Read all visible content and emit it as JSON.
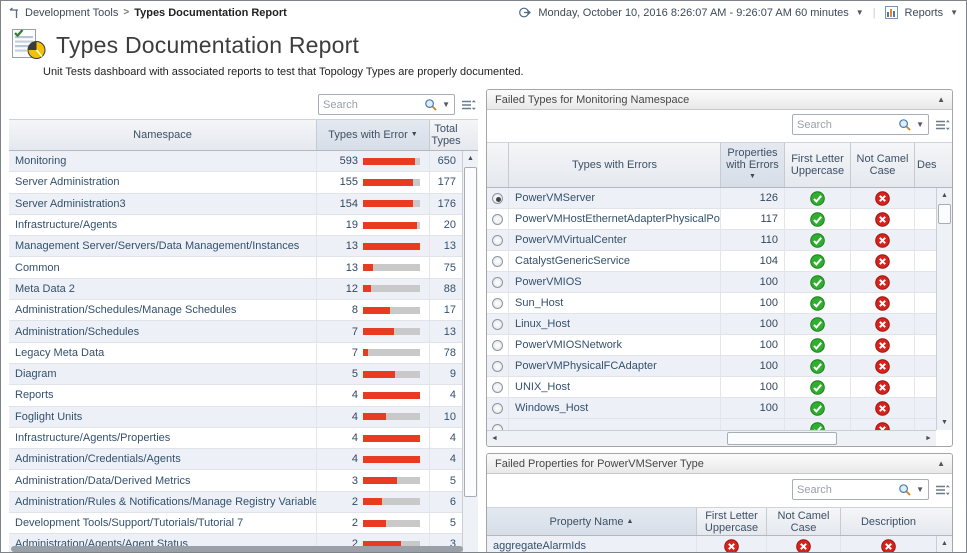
{
  "breadcrumb": {
    "section": "Development Tools",
    "separator": ">",
    "page": "Types Documentation Report"
  },
  "topbar": {
    "time_range": "Monday, October 10, 2016 8:26:07 AM - 9:26:07 AM 60 minutes",
    "reports_label": "Reports"
  },
  "header": {
    "title": "Types Documentation Report",
    "description": "Unit Tests dashboard with associated reports to test that Topology Types are properly documented."
  },
  "icons": {
    "breadcrumb": "bookmark-icon",
    "time": "time-range-icon",
    "reports": "report-chart-icon",
    "page_title": "report-document-pie-icon",
    "search": "magnifier-icon",
    "customizer": "table-customizer-icon",
    "pass": "green-check-circle",
    "fail": "red-x-circle"
  },
  "colors": {
    "error_bar": "#e83b20",
    "bar_track": "#c9c9c9",
    "pass_green": "#2fae2f",
    "fail_red": "#d7231d",
    "row_alt": "#edf1f7",
    "link_text": "#34506c"
  },
  "namespace_table": {
    "search_placeholder": "Search",
    "columns": [
      "Namespace",
      "Types with Error",
      "Total Types"
    ],
    "sort_column": "Types with Error",
    "sort_direction": "desc",
    "rows": [
      {
        "namespace": "Monitoring",
        "errors": 593,
        "total": 650
      },
      {
        "namespace": "Server Administration",
        "errors": 155,
        "total": 177
      },
      {
        "namespace": "Server Administration3",
        "errors": 154,
        "total": 176
      },
      {
        "namespace": "Infrastructure/Agents",
        "errors": 19,
        "total": 20
      },
      {
        "namespace": "Management Server/Servers/Data Management/Instances",
        "errors": 13,
        "total": 13
      },
      {
        "namespace": "Common",
        "errors": 13,
        "total": 75
      },
      {
        "namespace": "Meta Data 2",
        "errors": 12,
        "total": 88
      },
      {
        "namespace": "Administration/Schedules/Manage Schedules",
        "errors": 8,
        "total": 17
      },
      {
        "namespace": "Administration/Schedules",
        "errors": 7,
        "total": 13
      },
      {
        "namespace": "Legacy Meta Data",
        "errors": 7,
        "total": 78
      },
      {
        "namespace": "Diagram",
        "errors": 5,
        "total": 9
      },
      {
        "namespace": "Reports",
        "errors": 4,
        "total": 4
      },
      {
        "namespace": "Foglight Units",
        "errors": 4,
        "total": 10
      },
      {
        "namespace": "Infrastructure/Agents/Properties",
        "errors": 4,
        "total": 4
      },
      {
        "namespace": "Administration/Credentials/Agents",
        "errors": 4,
        "total": 4
      },
      {
        "namespace": "Administration/Data/Derived Metrics",
        "errors": 3,
        "total": 5
      },
      {
        "namespace": "Administration/Rules & Notifications/Manage Registry Variables",
        "errors": 2,
        "total": 6
      },
      {
        "namespace": "Development Tools/Support/Tutorials/Tutorial 7",
        "errors": 2,
        "total": 5
      },
      {
        "namespace": "Administration/Agents/Agent Status",
        "errors": 2,
        "total": 3
      }
    ]
  },
  "failed_types_panel": {
    "title": "Failed Types for Monitoring Namespace",
    "search_placeholder": "Search",
    "columns": [
      "Types with Errors",
      "Properties with Errors",
      "First Letter Uppercase",
      "Not Camel Case",
      "Description"
    ],
    "sort_column": "Properties with Errors",
    "sort_direction": "desc",
    "rows": [
      {
        "selected": true,
        "type": "PowerVMServer",
        "properties_with_errors": 126,
        "first_letter_uppercase": "pass",
        "not_camel_case": "fail"
      },
      {
        "selected": false,
        "type": "PowerVMHostEthernetAdapterPhysicalPort",
        "properties_with_errors": 117,
        "first_letter_uppercase": "pass",
        "not_camel_case": "fail"
      },
      {
        "selected": false,
        "type": "PowerVMVirtualCenter",
        "properties_with_errors": 110,
        "first_letter_uppercase": "pass",
        "not_camel_case": "fail"
      },
      {
        "selected": false,
        "type": "CatalystGenericService",
        "properties_with_errors": 104,
        "first_letter_uppercase": "pass",
        "not_camel_case": "fail"
      },
      {
        "selected": false,
        "type": "PowerVMIOS",
        "properties_with_errors": 100,
        "first_letter_uppercase": "pass",
        "not_camel_case": "fail"
      },
      {
        "selected": false,
        "type": "Sun_Host",
        "properties_with_errors": 100,
        "first_letter_uppercase": "pass",
        "not_camel_case": "fail"
      },
      {
        "selected": false,
        "type": "Linux_Host",
        "properties_with_errors": 100,
        "first_letter_uppercase": "pass",
        "not_camel_case": "fail"
      },
      {
        "selected": false,
        "type": "PowerVMIOSNetwork",
        "properties_with_errors": 100,
        "first_letter_uppercase": "pass",
        "not_camel_case": "fail"
      },
      {
        "selected": false,
        "type": "PowerVMPhysicalFCAdapter",
        "properties_with_errors": 100,
        "first_letter_uppercase": "pass",
        "not_camel_case": "fail"
      },
      {
        "selected": false,
        "type": "UNIX_Host",
        "properties_with_errors": 100,
        "first_letter_uppercase": "pass",
        "not_camel_case": "fail"
      },
      {
        "selected": false,
        "type": "Windows_Host",
        "properties_with_errors": 100,
        "first_letter_uppercase": "pass",
        "not_camel_case": "fail"
      }
    ],
    "partial_row_visible": true
  },
  "failed_properties_panel": {
    "title": "Failed Properties for PowerVMServer Type",
    "search_placeholder": "Search",
    "columns": [
      "Property Name",
      "First Letter Uppercase",
      "Not Camel Case",
      "Description"
    ],
    "sort_column": "Property Name",
    "sort_direction": "asc",
    "rows": [
      {
        "property": "aggregateAlarmIds",
        "first_letter_uppercase": "fail",
        "not_camel_case": "fail",
        "description": "fail"
      }
    ]
  }
}
